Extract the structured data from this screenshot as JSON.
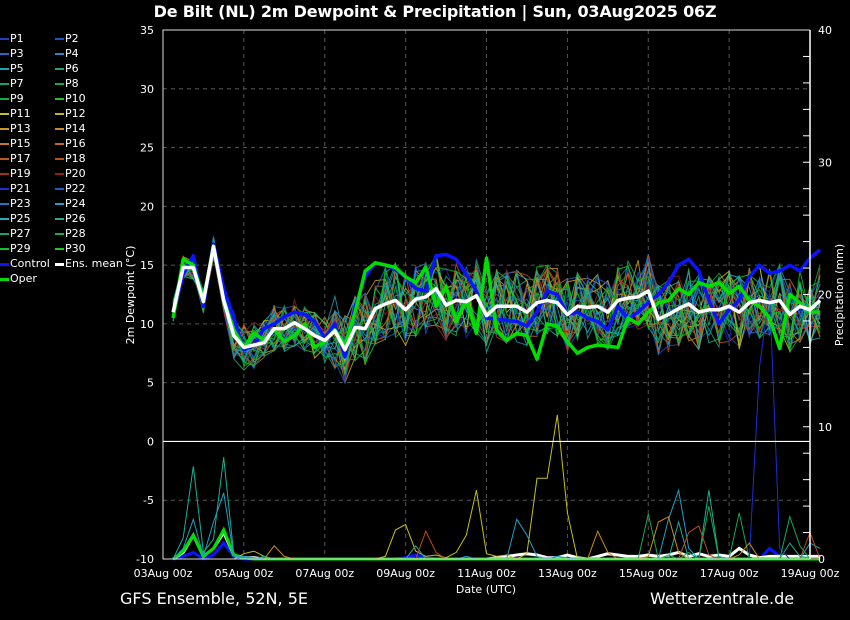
{
  "title": "De Bilt  (NL)  2m Dewpoint & Precipitation | Sun, 03Aug2025 06Z",
  "footer": {
    "left": "GFS Ensemble, 52N, 5E",
    "right": "Wetterzentrale.de"
  },
  "legend": [
    {
      "label": "P1",
      "color": "#1f3fbf"
    },
    {
      "label": "P2",
      "color": "#1f4fcf"
    },
    {
      "label": "P3",
      "color": "#2068c0"
    },
    {
      "label": "P4",
      "color": "#1e8ec0"
    },
    {
      "label": "P5",
      "color": "#1aa5b0"
    },
    {
      "label": "P6",
      "color": "#18a582"
    },
    {
      "label": "P7",
      "color": "#14a46a"
    },
    {
      "label": "P8",
      "color": "#16a852"
    },
    {
      "label": "P9",
      "color": "#12b03a"
    },
    {
      "label": "P10",
      "color": "#20c020"
    },
    {
      "label": "P11",
      "color": "#c8c020"
    },
    {
      "label": "P12",
      "color": "#c8b020"
    },
    {
      "label": "P13",
      "color": "#c89a20"
    },
    {
      "label": "P14",
      "color": "#c88a20"
    },
    {
      "label": "P15",
      "color": "#c87820"
    },
    {
      "label": "P16",
      "color": "#c06820"
    },
    {
      "label": "P17",
      "color": "#c05820"
    },
    {
      "label": "P18",
      "color": "#c04a20"
    },
    {
      "label": "P19",
      "color": "#a03020"
    },
    {
      "label": "P20",
      "color": "#902020"
    },
    {
      "label": "P21",
      "color": "#1a2fd0"
    },
    {
      "label": "P22",
      "color": "#1a5ad0"
    },
    {
      "label": "P23",
      "color": "#2078c0"
    },
    {
      "label": "P24",
      "color": "#20a0c8"
    },
    {
      "label": "P25",
      "color": "#20b0b8"
    },
    {
      "label": "P26",
      "color": "#18b090"
    },
    {
      "label": "P27",
      "color": "#10a868"
    },
    {
      "label": "P28",
      "color": "#10b050"
    },
    {
      "label": "P29",
      "color": "#10c030"
    },
    {
      "label": "P30",
      "color": "#10d010"
    },
    {
      "label": "Control",
      "color": "#0a14ff"
    },
    {
      "label": "Ens. mean",
      "color": "#ffffff"
    },
    {
      "label": "Oper",
      "color": "#00e000"
    }
  ],
  "chart_data": {
    "type": "line",
    "title": "De Bilt  (NL)  2m Dewpoint & Precipitation | Sun, 03Aug2025 06Z",
    "xlabel": "Date (UTC)",
    "ylabel": "2m Dewpoint (°C)",
    "y2label": "Precipitation (mm)",
    "ylim": [
      -10,
      35
    ],
    "y2lim": [
      0,
      40
    ],
    "yticks": [
      "-10",
      "-5",
      "0",
      "5",
      "10",
      "15",
      "20",
      "25",
      "30",
      "35"
    ],
    "y2ticks": [
      "0",
      "10",
      "20",
      "30",
      "40"
    ],
    "xticks": [
      "03Aug 00z",
      "05Aug 00z",
      "07Aug 00z",
      "09Aug 00z",
      "11Aug 00z",
      "13Aug 00z",
      "15Aug 00z",
      "17Aug 00z",
      "19Aug 00z"
    ],
    "x_range_hours": [
      0,
      384
    ],
    "x_start_hour": 6,
    "x_step_hours": 6,
    "grid": true,
    "legend_position": "left-outside",
    "dewpoint_series": [
      {
        "name": "Control",
        "values": [
          11.0,
          14.2,
          15.8,
          11.5,
          16.8,
          13.0,
          10.5,
          7.8,
          8.2,
          9.6,
          10.0,
          10.6,
          11.0,
          10.8,
          10.2,
          8.8,
          10.0,
          7.2,
          11.5,
          14.0,
          15.2,
          15.0,
          14.6,
          14.0,
          13.0,
          12.8,
          15.8,
          15.9,
          15.5,
          14.2,
          12.8,
          10.5,
          10.4,
          10.3,
          10.2,
          9.8,
          11.0,
          12.8,
          12.5,
          10.8,
          11.0,
          10.5,
          10.2,
          9.5,
          11.5,
          10.4,
          11.0,
          11.8,
          12.5,
          13.5,
          15.0,
          15.5,
          14.5,
          12.0,
          10.0,
          11.2,
          12.0,
          14.0,
          15.0,
          14.3,
          14.5,
          15.0,
          14.5,
          15.6,
          16.3
        ]
      },
      {
        "name": "Ens. mean",
        "values": [
          11.0,
          14.8,
          14.8,
          11.9,
          16.6,
          12.0,
          9.0,
          8.0,
          8.2,
          8.4,
          9.6,
          9.6,
          10.1,
          9.6,
          9.0,
          8.6,
          9.4,
          7.8,
          9.7,
          9.6,
          11.3,
          11.7,
          12.0,
          11.2,
          12.1,
          12.3,
          13.0,
          11.6,
          12.0,
          11.9,
          12.4,
          10.7,
          11.5,
          11.5,
          11.5,
          11.0,
          11.8,
          12.0,
          11.8,
          10.8,
          11.5,
          11.4,
          11.5,
          11.0,
          12.0,
          12.2,
          12.3,
          12.8,
          10.4,
          10.8,
          11.3,
          11.7,
          11.0,
          11.2,
          11.2,
          11.5,
          11.0,
          11.8,
          12.0,
          11.8,
          12.0,
          10.8,
          11.5,
          11.2,
          12.0
        ]
      },
      {
        "name": "Oper",
        "values": [
          10.5,
          15.5,
          15.0,
          12.0,
          16.6,
          12.0,
          9.5,
          8.0,
          9.2,
          8.6,
          9.5,
          8.5,
          9.0,
          10.0,
          8.0,
          8.5,
          9.5,
          8.2,
          11.0,
          14.5,
          15.2,
          15.0,
          14.8,
          14.0,
          13.5,
          14.8,
          11.5,
          13.2,
          10.2,
          12.0,
          9.2,
          15.6,
          9.5,
          8.6,
          9.2,
          9.0,
          7.0,
          10.0,
          9.8,
          8.5,
          7.5,
          8.0,
          8.2,
          8.1,
          8.0,
          10.5,
          10.0,
          11.0,
          11.8,
          12.0,
          13.0,
          12.5,
          13.5,
          13.2,
          13.5,
          12.6,
          13.2,
          12.0,
          11.5,
          10.5,
          7.9,
          12.5,
          11.8,
          11.0,
          11.0
        ]
      }
    ],
    "precip_series": [
      {
        "name": "Control",
        "values": [
          0,
          0.2,
          0.5,
          0,
          0.3,
          1.2,
          0.2,
          0,
          0,
          0,
          0,
          0,
          0,
          0,
          0,
          0,
          0,
          0,
          0,
          0,
          0,
          0,
          0,
          0.1,
          0.3,
          0.1,
          0,
          0,
          0,
          0,
          0,
          0,
          0,
          0,
          0,
          0,
          0,
          0,
          0,
          0,
          0,
          0,
          0,
          0,
          0,
          0,
          0,
          0,
          0,
          0,
          0,
          0,
          0,
          0,
          0,
          0,
          0,
          0,
          0,
          0.8,
          0.2,
          0,
          0,
          0,
          0
        ]
      },
      {
        "name": "Ens. mean",
        "values": [
          0,
          0.5,
          1.8,
          0.2,
          0.8,
          2.0,
          0.3,
          0.1,
          0.1,
          0,
          0,
          0,
          0,
          0,
          0,
          0,
          0,
          0,
          0,
          0,
          0,
          0,
          0,
          0,
          0,
          0,
          0,
          0,
          0,
          0,
          0,
          0,
          0.1,
          0.2,
          0.3,
          0.4,
          0.3,
          0.1,
          0.1,
          0.3,
          0.1,
          0,
          0.2,
          0.4,
          0.3,
          0.2,
          0.2,
          0.3,
          0.2,
          0.3,
          0.5,
          0.2,
          0.4,
          0.2,
          0.3,
          0.2,
          0.8,
          0.3,
          0.1,
          0.2,
          0.2,
          0.2,
          0.2,
          0.2,
          0.2
        ]
      },
      {
        "name": "Oper",
        "values": [
          0,
          0.6,
          1.8,
          0.2,
          0.8,
          2.2,
          0.3,
          0.1,
          0,
          0,
          0,
          0,
          0,
          0,
          0,
          0,
          0,
          0,
          0,
          0,
          0,
          0,
          0,
          0,
          0,
          0,
          0,
          0,
          0,
          0,
          0,
          0,
          0,
          0,
          0,
          0,
          0,
          0,
          0,
          0,
          0,
          0,
          0,
          0,
          0,
          0,
          0,
          0,
          0,
          0,
          0,
          0,
          0,
          0,
          0,
          0,
          0,
          0,
          0,
          0,
          0,
          0,
          0,
          0,
          0
        ]
      },
      {
        "name": "P11",
        "values": [
          0,
          0,
          0,
          0,
          0,
          0,
          0,
          0.4,
          0.6,
          0.2,
          0,
          0,
          0,
          0,
          0,
          0,
          0,
          0,
          0,
          0,
          0,
          0.2,
          2.2,
          2.6,
          0.6,
          0.2,
          0.3,
          0.1,
          0.5,
          1.8,
          5.2,
          0.4,
          0.2,
          0.3,
          0,
          0.4,
          6.1,
          6.1,
          10.9,
          3.5,
          0,
          0,
          0,
          0,
          0,
          0,
          0,
          0,
          0,
          0,
          0,
          0,
          0,
          0,
          0,
          0,
          0,
          0,
          0,
          0,
          0,
          0,
          0,
          0,
          0
        ]
      },
      {
        "name": "P26",
        "values": [
          0,
          1.6,
          7.0,
          0.5,
          1.5,
          7.7,
          0.3,
          0.1,
          0,
          0.2,
          0,
          0,
          0,
          0,
          0,
          0,
          0,
          0,
          0,
          0,
          0,
          0,
          0,
          0,
          1.0,
          0,
          0,
          0,
          0,
          0,
          0,
          0,
          0,
          0,
          0,
          0,
          0,
          0,
          0,
          0,
          0,
          0,
          0,
          0,
          0,
          0,
          0,
          0,
          0,
          0,
          2.8,
          0,
          0,
          5.2,
          0,
          0,
          0,
          0,
          0,
          0,
          0,
          1.2,
          0.2,
          0.1,
          0
        ]
      },
      {
        "name": "P24",
        "values": [
          0,
          0.8,
          3.0,
          0.2,
          2.8,
          5.0,
          0.2,
          0.2,
          0.1,
          0,
          0,
          0,
          0,
          0,
          0,
          0,
          0,
          0,
          0,
          0,
          0,
          0,
          0,
          0,
          0,
          0,
          0,
          0,
          0,
          0.2,
          0,
          0,
          0,
          0,
          3.0,
          1.8,
          0.2,
          0,
          0.2,
          0.1,
          0,
          0,
          0,
          0,
          0,
          0,
          0,
          0,
          0,
          3.0,
          5.2,
          0.8,
          0,
          0,
          0.2,
          0,
          0,
          0,
          0,
          0,
          0,
          0,
          0,
          1.2,
          0.8
        ]
      },
      {
        "name": "P21",
        "values": [
          0,
          0,
          0,
          0,
          0,
          0,
          0,
          0,
          0,
          0,
          0,
          0,
          0,
          0,
          0,
          0,
          0,
          0,
          0,
          0,
          0,
          0,
          0,
          0,
          0,
          0,
          0,
          0,
          0,
          0,
          0,
          0,
          0,
          0,
          0,
          0,
          0,
          0,
          0,
          0,
          0,
          0,
          0,
          0,
          0,
          0,
          0,
          0,
          0,
          0,
          0,
          0,
          0,
          0,
          0,
          0,
          0,
          0,
          14.5,
          20.2,
          0.8,
          0,
          0,
          0,
          0
        ]
      },
      {
        "name": "P8",
        "values": [
          0,
          0,
          0,
          0,
          0,
          0,
          0,
          0,
          0,
          0,
          0,
          0,
          0,
          0,
          0,
          0,
          0,
          0,
          0,
          0,
          0,
          0,
          0,
          0,
          0,
          0,
          0,
          0,
          0,
          0,
          0,
          0,
          0,
          0,
          0,
          0,
          0,
          0,
          0,
          0,
          0,
          0,
          0,
          0,
          0,
          0,
          0,
          3.4,
          0,
          0.3,
          0,
          0.5,
          0,
          4.0,
          0,
          0,
          3.5,
          0,
          0,
          0,
          0,
          3.2,
          1.0,
          0,
          0
        ]
      },
      {
        "name": "P18",
        "values": [
          0,
          0,
          0,
          0,
          0,
          0,
          0,
          0,
          0,
          0,
          0,
          0,
          0,
          0,
          0,
          0,
          0,
          0,
          0,
          0,
          0,
          0,
          0,
          0,
          0,
          2.1,
          0.5,
          0,
          0,
          0,
          0,
          0,
          0,
          0,
          0,
          0,
          0,
          0,
          0,
          0,
          0,
          0,
          0,
          0,
          0,
          0,
          0,
          0,
          0,
          0,
          0,
          2.0,
          2.5,
          0.3,
          0,
          0,
          0,
          0,
          0,
          0,
          0,
          0,
          0,
          2.0,
          0
        ]
      },
      {
        "name": "P14",
        "values": [
          0,
          0,
          0,
          0,
          0,
          0,
          0,
          0,
          0,
          0,
          1.0,
          0.2,
          0,
          0,
          0,
          0,
          0,
          0,
          0,
          0,
          0,
          0,
          0,
          0,
          0,
          0,
          0,
          0,
          0,
          0,
          0,
          0,
          0,
          0,
          0,
          0,
          0,
          0,
          0,
          0,
          0,
          0,
          2.1,
          0.5,
          0,
          0,
          0,
          0.2,
          2.8,
          3.2,
          0.5,
          0,
          0,
          0,
          0,
          0,
          0.3,
          1.2,
          0,
          0,
          0,
          0,
          0,
          0,
          0
        ]
      }
    ]
  }
}
